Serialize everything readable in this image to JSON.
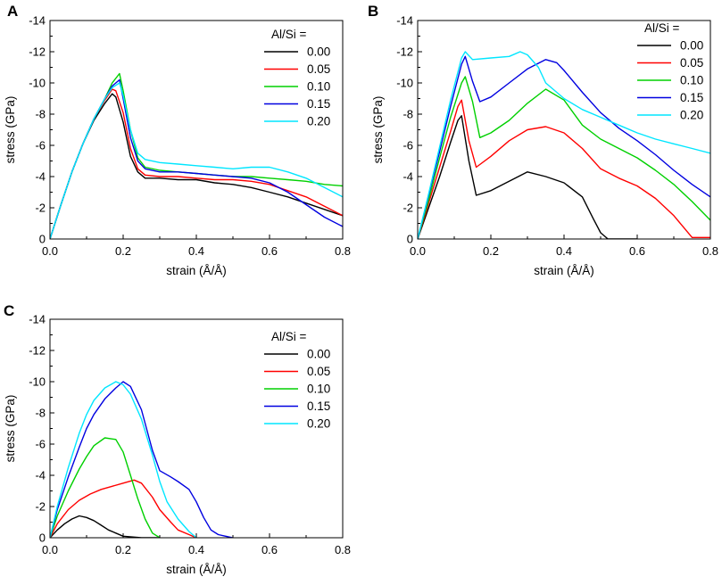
{
  "figure": {
    "panels": [
      "A",
      "B",
      "C"
    ],
    "x_tick_labels": [
      "0.0",
      "0.2",
      "0.4",
      "0.6",
      "0.8"
    ],
    "y_tick_labels": [
      "0",
      "-2",
      "-4",
      "-6",
      "-8",
      "-10",
      "-12",
      "-14"
    ],
    "legend_title": "Al/Si =",
    "legend_labels": [
      "0.00",
      "0.05",
      "0.10",
      "0.15",
      "0.20"
    ],
    "series_colors": [
      "#000000",
      "#ff0000",
      "#00d000",
      "#0000e0",
      "#00e6ff"
    ]
  },
  "chart_data": [
    {
      "panel": "A",
      "type": "line",
      "xlabel": "strain (Å/Å)",
      "ylabel": "stress (GPa)",
      "xlim": [
        0,
        0.8
      ],
      "ylim": [
        0,
        -14
      ],
      "legend_title": "Al/Si =",
      "series": [
        {
          "name": "0.00",
          "color": "#000000",
          "x": [
            0,
            0.03,
            0.06,
            0.09,
            0.12,
            0.15,
            0.17,
            0.18,
            0.2,
            0.22,
            0.24,
            0.26,
            0.3,
            0.35,
            0.4,
            0.45,
            0.5,
            0.55,
            0.6,
            0.65,
            0.7,
            0.75,
            0.8
          ],
          "y": [
            0,
            -2.2,
            -4.3,
            -6.1,
            -7.6,
            -8.7,
            -9.3,
            -9.1,
            -7.5,
            -5.3,
            -4.3,
            -3.9,
            -3.9,
            -3.8,
            -3.8,
            -3.6,
            -3.5,
            -3.3,
            -3.0,
            -2.7,
            -2.3,
            -1.9,
            -1.5
          ]
        },
        {
          "name": "0.05",
          "color": "#ff0000",
          "x": [
            0,
            0.03,
            0.06,
            0.09,
            0.12,
            0.15,
            0.17,
            0.18,
            0.2,
            0.22,
            0.24,
            0.26,
            0.3,
            0.35,
            0.4,
            0.45,
            0.5,
            0.55,
            0.6,
            0.65,
            0.7,
            0.75,
            0.8
          ],
          "y": [
            0,
            -2.2,
            -4.3,
            -6.1,
            -7.7,
            -8.9,
            -9.6,
            -9.5,
            -8.1,
            -5.8,
            -4.5,
            -4.1,
            -4.0,
            -4.0,
            -3.9,
            -3.8,
            -3.8,
            -3.7,
            -3.5,
            -3.1,
            -2.7,
            -2.1,
            -1.5
          ]
        },
        {
          "name": "0.10",
          "color": "#00d000",
          "x": [
            0,
            0.03,
            0.06,
            0.09,
            0.12,
            0.15,
            0.17,
            0.19,
            0.2,
            0.22,
            0.24,
            0.26,
            0.3,
            0.35,
            0.4,
            0.45,
            0.5,
            0.55,
            0.6,
            0.65,
            0.7,
            0.75,
            0.8
          ],
          "y": [
            0,
            -2.2,
            -4.3,
            -6.1,
            -7.7,
            -9.0,
            -10.0,
            -10.6,
            -9.5,
            -7.0,
            -5.2,
            -4.6,
            -4.4,
            -4.3,
            -4.2,
            -4.1,
            -4.0,
            -4.0,
            -3.9,
            -3.8,
            -3.7,
            -3.5,
            -3.4
          ]
        },
        {
          "name": "0.15",
          "color": "#0000e0",
          "x": [
            0,
            0.03,
            0.06,
            0.09,
            0.12,
            0.15,
            0.17,
            0.19,
            0.2,
            0.22,
            0.24,
            0.26,
            0.3,
            0.35,
            0.4,
            0.45,
            0.5,
            0.55,
            0.6,
            0.65,
            0.7,
            0.75,
            0.8
          ],
          "y": [
            0,
            -2.2,
            -4.3,
            -6.1,
            -7.7,
            -9.0,
            -9.8,
            -10.2,
            -9.0,
            -6.5,
            -5.0,
            -4.5,
            -4.3,
            -4.3,
            -4.2,
            -4.1,
            -4.0,
            -3.9,
            -3.6,
            -3.0,
            -2.2,
            -1.4,
            -0.8
          ]
        },
        {
          "name": "0.20",
          "color": "#00e6ff",
          "x": [
            0,
            0.03,
            0.06,
            0.09,
            0.12,
            0.15,
            0.17,
            0.19,
            0.2,
            0.22,
            0.24,
            0.26,
            0.3,
            0.35,
            0.4,
            0.45,
            0.5,
            0.55,
            0.6,
            0.65,
            0.7,
            0.75,
            0.8
          ],
          "y": [
            0,
            -2.2,
            -4.3,
            -6.1,
            -7.7,
            -9.0,
            -9.7,
            -10.0,
            -9.2,
            -7.0,
            -5.5,
            -5.1,
            -4.9,
            -4.8,
            -4.7,
            -4.6,
            -4.5,
            -4.6,
            -4.6,
            -4.3,
            -3.9,
            -3.3,
            -2.7
          ]
        }
      ]
    },
    {
      "panel": "B",
      "type": "line",
      "xlabel": "strain (Å/Å)",
      "ylabel": "stress (GPa)",
      "xlim": [
        0,
        0.8
      ],
      "ylim": [
        0,
        -14
      ],
      "legend_title": "Al/Si =",
      "series": [
        {
          "name": "0.00",
          "color": "#000000",
          "x": [
            0,
            0.03,
            0.06,
            0.09,
            0.11,
            0.12,
            0.14,
            0.16,
            0.2,
            0.25,
            0.3,
            0.35,
            0.4,
            0.45,
            0.48,
            0.5,
            0.52,
            0.55,
            0.6
          ],
          "y": [
            0,
            -2.0,
            -4.0,
            -6.2,
            -7.6,
            -7.9,
            -5.0,
            -2.8,
            -3.1,
            -3.7,
            -4.3,
            -4.0,
            -3.6,
            -2.7,
            -1.3,
            -0.4,
            0,
            0,
            0
          ]
        },
        {
          "name": "0.05",
          "color": "#ff0000",
          "x": [
            0,
            0.03,
            0.06,
            0.09,
            0.11,
            0.12,
            0.14,
            0.16,
            0.2,
            0.25,
            0.3,
            0.35,
            0.4,
            0.45,
            0.5,
            0.55,
            0.6,
            0.65,
            0.7,
            0.75,
            0.8
          ],
          "y": [
            0,
            -2.3,
            -4.6,
            -6.9,
            -8.5,
            -8.9,
            -6.3,
            -4.6,
            -5.3,
            -6.3,
            -7.0,
            -7.2,
            -6.8,
            -5.8,
            -4.5,
            -3.9,
            -3.4,
            -2.6,
            -1.5,
            -0.1,
            -0.1
          ]
        },
        {
          "name": "0.10",
          "color": "#00d000",
          "x": [
            0,
            0.03,
            0.06,
            0.09,
            0.12,
            0.13,
            0.15,
            0.17,
            0.2,
            0.25,
            0.3,
            0.35,
            0.4,
            0.45,
            0.5,
            0.55,
            0.6,
            0.65,
            0.7,
            0.75,
            0.8
          ],
          "y": [
            0,
            -2.5,
            -5.2,
            -7.8,
            -10.0,
            -10.4,
            -8.8,
            -6.5,
            -6.8,
            -7.6,
            -8.7,
            -9.6,
            -8.9,
            -7.3,
            -6.4,
            -5.8,
            -5.2,
            -4.4,
            -3.5,
            -2.4,
            -1.2
          ]
        },
        {
          "name": "0.15",
          "color": "#0000e0",
          "x": [
            0,
            0.03,
            0.06,
            0.09,
            0.12,
            0.13,
            0.15,
            0.17,
            0.2,
            0.25,
            0.3,
            0.35,
            0.38,
            0.4,
            0.45,
            0.5,
            0.55,
            0.6,
            0.65,
            0.7,
            0.75,
            0.8
          ],
          "y": [
            0,
            -2.8,
            -5.6,
            -8.5,
            -11.2,
            -11.7,
            -10.1,
            -8.8,
            -9.1,
            -10.0,
            -10.9,
            -11.5,
            -11.3,
            -10.8,
            -9.4,
            -8.1,
            -7.1,
            -6.3,
            -5.4,
            -4.4,
            -3.5,
            -2.7
          ]
        },
        {
          "name": "0.20",
          "color": "#00e6ff",
          "x": [
            0,
            0.03,
            0.06,
            0.09,
            0.12,
            0.13,
            0.15,
            0.2,
            0.25,
            0.28,
            0.3,
            0.33,
            0.35,
            0.4,
            0.45,
            0.5,
            0.55,
            0.6,
            0.65,
            0.7,
            0.75,
            0.8
          ],
          "y": [
            0,
            -2.9,
            -5.9,
            -8.9,
            -11.6,
            -12.0,
            -11.5,
            -11.6,
            -11.7,
            -12.0,
            -11.8,
            -11.0,
            -10.0,
            -9.0,
            -8.3,
            -7.8,
            -7.3,
            -6.8,
            -6.4,
            -6.1,
            -5.8,
            -5.5
          ]
        }
      ]
    },
    {
      "panel": "C",
      "type": "line",
      "xlabel": "strain (Å/Å)",
      "ylabel": "stress (GPa)",
      "xlim": [
        0,
        0.8
      ],
      "ylim": [
        0,
        -14
      ],
      "legend_title": "Al/Si =",
      "series": [
        {
          "name": "0.00",
          "color": "#000000",
          "x": [
            0,
            0.02,
            0.04,
            0.06,
            0.08,
            0.1,
            0.12,
            0.14,
            0.16,
            0.18,
            0.2,
            0.25,
            0.3
          ],
          "y": [
            0,
            -0.5,
            -0.9,
            -1.2,
            -1.4,
            -1.3,
            -1.1,
            -0.8,
            -0.5,
            -0.3,
            -0.1,
            0,
            0
          ]
        },
        {
          "name": "0.05",
          "color": "#ff0000",
          "x": [
            0,
            0.02,
            0.05,
            0.08,
            0.11,
            0.14,
            0.17,
            0.2,
            0.23,
            0.25,
            0.28,
            0.3,
            0.33,
            0.35,
            0.38,
            0.4
          ],
          "y": [
            0,
            -0.9,
            -1.8,
            -2.4,
            -2.8,
            -3.1,
            -3.3,
            -3.5,
            -3.7,
            -3.5,
            -2.6,
            -1.8,
            -1.0,
            -0.5,
            -0.2,
            0
          ]
        },
        {
          "name": "0.10",
          "color": "#00d000",
          "x": [
            0,
            0.02,
            0.05,
            0.08,
            0.1,
            0.12,
            0.15,
            0.18,
            0.2,
            0.22,
            0.24,
            0.26,
            0.28,
            0.3
          ],
          "y": [
            0,
            -1.4,
            -3.0,
            -4.4,
            -5.2,
            -5.9,
            -6.4,
            -6.3,
            -5.5,
            -4.0,
            -2.5,
            -1.2,
            -0.3,
            0
          ]
        },
        {
          "name": "0.15",
          "color": "#0000e0",
          "x": [
            0,
            0.02,
            0.05,
            0.08,
            0.1,
            0.12,
            0.15,
            0.18,
            0.2,
            0.22,
            0.25,
            0.28,
            0.3,
            0.33,
            0.35,
            0.38,
            0.4,
            0.42,
            0.44,
            0.46,
            0.48,
            0.5
          ],
          "y": [
            0,
            -1.8,
            -3.9,
            -5.8,
            -7.0,
            -7.9,
            -8.9,
            -9.6,
            -10.0,
            -9.7,
            -8.2,
            -5.6,
            -4.3,
            -3.9,
            -3.6,
            -3.1,
            -2.3,
            -1.3,
            -0.5,
            -0.2,
            -0.1,
            0
          ]
        },
        {
          "name": "0.20",
          "color": "#00e6ff",
          "x": [
            0,
            0.02,
            0.05,
            0.08,
            0.1,
            0.12,
            0.15,
            0.18,
            0.2,
            0.22,
            0.25,
            0.28,
            0.3,
            0.32,
            0.35,
            0.38,
            0.4
          ],
          "y": [
            0,
            -2.0,
            -4.5,
            -6.7,
            -7.9,
            -8.8,
            -9.6,
            -10.0,
            -9.8,
            -9.2,
            -7.6,
            -5.3,
            -3.6,
            -2.3,
            -1.2,
            -0.4,
            0
          ]
        }
      ]
    }
  ]
}
